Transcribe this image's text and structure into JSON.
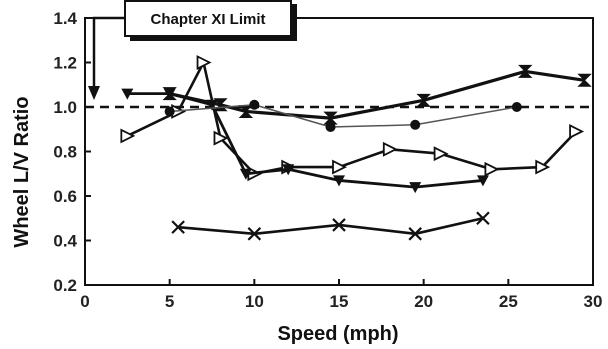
{
  "chart_data": {
    "type": "line",
    "title": "",
    "xlabel": "Speed (mph)",
    "ylabel": "Wheel L/V Ratio",
    "xlim": [
      0,
      30
    ],
    "ylim": [
      0.2,
      1.4
    ],
    "x_ticks": [
      0,
      5,
      10,
      15,
      20,
      25,
      30
    ],
    "y_ticks": [
      0.2,
      0.4,
      0.6,
      0.8,
      1.0,
      1.2,
      1.4
    ],
    "grid": false,
    "annotation": {
      "text": "Chapter XI Limit",
      "points_to": {
        "x": 0.6,
        "y": 1.02
      }
    },
    "reference_line": {
      "y": 1.0,
      "style": "dashed"
    },
    "series": [
      {
        "marker": "triangle-right-open",
        "x": [
          2.5,
          5.5,
          7.0,
          8.0,
          10.0,
          12.0,
          15.0,
          18.0,
          21.0,
          24.0,
          27.0,
          29.0
        ],
        "y": [
          0.87,
          0.98,
          1.2,
          0.86,
          0.7,
          0.73,
          0.73,
          0.81,
          0.79,
          0.72,
          0.73,
          0.89
        ]
      },
      {
        "marker": "triangle-down-filled",
        "x": [
          2.5,
          5.0,
          7.5,
          9.5,
          12.0,
          15.0,
          19.5,
          23.5
        ],
        "y": [
          1.06,
          1.06,
          1.01,
          0.7,
          0.72,
          0.67,
          0.64,
          0.67
        ]
      },
      {
        "marker": "hourglass",
        "x": [
          5.0,
          8.0,
          9.5,
          14.5,
          20.0,
          26.0,
          29.5
        ],
        "y": [
          1.06,
          1.01,
          0.98,
          0.95,
          1.03,
          1.16,
          1.12
        ]
      },
      {
        "marker": "circle-filled",
        "x": [
          5.0,
          10.0,
          14.5,
          19.5,
          25.5
        ],
        "y": [
          0.98,
          1.01,
          0.91,
          0.92,
          1.0
        ]
      },
      {
        "marker": "x",
        "x": [
          5.5,
          10.0,
          15.0,
          19.5,
          23.5
        ],
        "y": [
          0.46,
          0.43,
          0.47,
          0.43,
          0.5
        ]
      }
    ]
  }
}
